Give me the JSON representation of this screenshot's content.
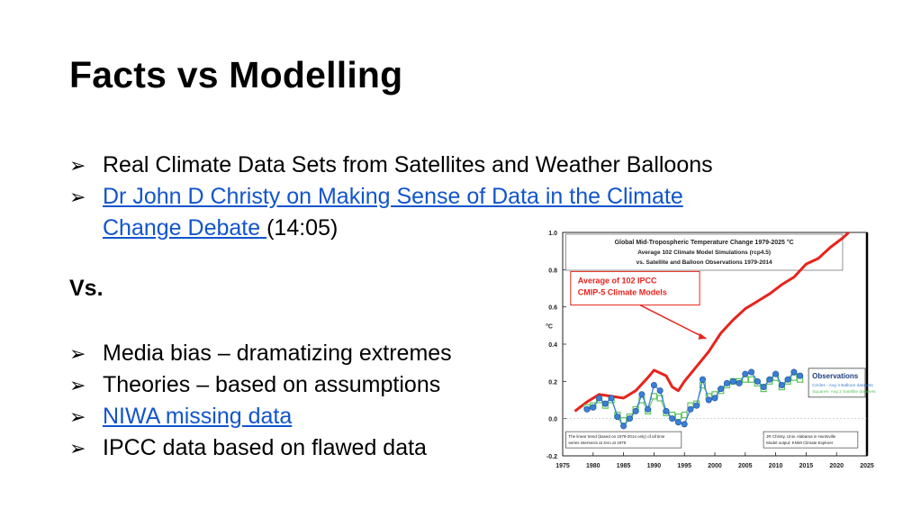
{
  "slide": {
    "title": "Facts vs Modelling",
    "arrow": "➢",
    "bullets_top": [
      {
        "text": "Real Climate Data Sets from Satellites and Weather Balloons",
        "link": false
      },
      {
        "text": "Dr John D Christy on Making Sense of Data in the Climate",
        "link": true
      },
      {
        "text": "Change Debate ",
        "link": true,
        "suffix": "(14:05)",
        "continuation": true
      }
    ],
    "vs_label": "Vs.",
    "bullets_bottom": [
      {
        "text": "Media bias – dramatizing extremes",
        "link": false
      },
      {
        "text": "Theories – based on assumptions",
        "link": false
      },
      {
        "text": "NIWA missing data",
        "link": true
      },
      {
        "text": "IPCC data based on flawed data",
        "link": false
      }
    ]
  },
  "colors": {
    "link": "#1155cc",
    "model_line": "#e8231c",
    "observations": "#3b7fd6",
    "squares": "#5cc45a"
  },
  "chart_data": {
    "type": "line",
    "title_lines": [
      "Global Mid-Tropospheric Temperature Change 1979-2025 °C",
      "Average 102 Climate Model Simulations (rcp4.5)",
      "vs. Satellite and Balloon Observations 1979-2014"
    ],
    "ylabel": "°C",
    "ylim": [
      -0.2,
      1.0
    ],
    "xlim": [
      1975,
      2025
    ],
    "yticks": [
      "1.0",
      "0.8",
      "0.6",
      "0.4",
      "0.2",
      "0.0",
      "-0.2"
    ],
    "xticks": [
      "1975",
      "1980",
      "1985",
      "1990",
      "1995",
      "2000",
      "2005",
      "2010",
      "2015",
      "2020",
      "2025"
    ],
    "model_label": [
      "Average of 102 IPCC",
      "CMIP-5 Climate Models"
    ],
    "obs_legend": {
      "title": "Observations",
      "lines": [
        "Circles - Avg 4 Balloon datasets",
        "Squares- Avg 2 Satellite datasets"
      ]
    },
    "note_left": [
      "The linear trend (based on 1979-2014 only) of all time",
      "series intersects at zero at 1979"
    ],
    "note_right": [
      "JR Christy, Univ. Alabama in Huntsville",
      "Model output: KNMI Climate Explorer"
    ],
    "series": [
      {
        "name": "Average of 102 IPCC CMIP-5 Climate Models",
        "x": [
          1977,
          1979,
          1981,
          1983,
          1985,
          1987,
          1989,
          1990,
          1992,
          1993,
          1994,
          1995,
          1997,
          1999,
          2001,
          2003,
          2005,
          2007,
          2009,
          2011,
          2013,
          2015,
          2017,
          2019,
          2021,
          2022
        ],
        "y": [
          0.04,
          0.09,
          0.13,
          0.12,
          0.11,
          0.15,
          0.22,
          0.26,
          0.23,
          0.17,
          0.15,
          0.2,
          0.28,
          0.36,
          0.46,
          0.53,
          0.59,
          0.63,
          0.67,
          0.72,
          0.76,
          0.83,
          0.86,
          0.92,
          0.97,
          1.0
        ]
      },
      {
        "name": "Circles - Avg 4 Balloon datasets",
        "x": [
          1979,
          1980,
          1981,
          1982,
          1983,
          1984,
          1985,
          1986,
          1987,
          1988,
          1989,
          1990,
          1991,
          1992,
          1993,
          1994,
          1995,
          1996,
          1997,
          1998,
          1999,
          2000,
          2001,
          2002,
          2003,
          2004,
          2005,
          2006,
          2007,
          2008,
          2009,
          2010,
          2011,
          2012,
          2013,
          2014
        ],
        "y": [
          0.05,
          0.06,
          0.11,
          0.08,
          0.11,
          0.01,
          -0.04,
          0.0,
          0.04,
          0.13,
          0.05,
          0.18,
          0.15,
          0.04,
          0.0,
          -0.02,
          -0.03,
          0.05,
          0.07,
          0.21,
          0.1,
          0.11,
          0.16,
          0.19,
          0.2,
          0.19,
          0.24,
          0.25,
          0.2,
          0.17,
          0.21,
          0.24,
          0.18,
          0.21,
          0.25,
          0.23
        ]
      },
      {
        "name": "Squares- Avg 2 Satellite datasets",
        "x": [
          1979,
          1980,
          1981,
          1982,
          1983,
          1984,
          1985,
          1986,
          1987,
          1988,
          1989,
          1990,
          1991,
          1992,
          1993,
          1994,
          1995,
          1996,
          1997,
          1998,
          1999,
          2000,
          2001,
          2002,
          2003,
          2004,
          2005,
          2006,
          2007,
          2008,
          2009,
          2010,
          2011,
          2012,
          2013,
          2014
        ],
        "y": [
          0.06,
          0.07,
          0.1,
          0.07,
          0.1,
          0.02,
          -0.01,
          0.01,
          0.05,
          0.1,
          0.04,
          0.12,
          0.11,
          0.03,
          0.02,
          0.01,
          0.02,
          0.07,
          0.08,
          0.18,
          0.12,
          0.13,
          0.15,
          0.18,
          0.2,
          0.2,
          0.21,
          0.21,
          0.19,
          0.16,
          0.2,
          0.22,
          0.17,
          0.2,
          0.22,
          0.21
        ]
      }
    ]
  }
}
